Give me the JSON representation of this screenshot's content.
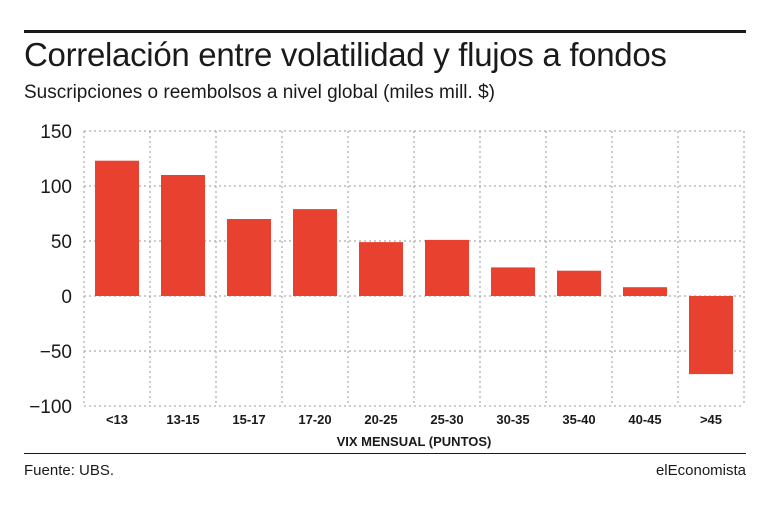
{
  "title": "Correlación entre volatilidad y flujos a fondos",
  "subtitle": "Suscripciones o reembolsos a nivel global (miles mill. $)",
  "source": "Fuente: UBS.",
  "brand": "elEconomista",
  "colors": {
    "bar": "#e8412f",
    "grid": "#9a9a9a",
    "text": "#1a1a1a"
  },
  "chart_data": {
    "type": "bar",
    "title": "Correlación entre volatilidad y flujos a fondos",
    "subtitle": "Suscripciones o reembolsos a nivel global (miles mill. $)",
    "xlabel": "VIX MENSUAL (PUNTOS)",
    "ylabel": "",
    "categories": [
      "<13",
      "13-15",
      "15-17",
      "17-20",
      "20-25",
      "25-30",
      "30-35",
      "35-40",
      "40-45",
      ">45"
    ],
    "values": [
      123,
      110,
      70,
      79,
      49,
      51,
      26,
      23,
      8,
      -71
    ],
    "ylim": [
      -100,
      150
    ],
    "yticks": [
      150,
      100,
      50,
      0,
      -50,
      -100
    ],
    "ytick_labels": [
      "150",
      "100",
      "50",
      "0",
      "−50",
      "−100"
    ],
    "grid": true,
    "legend": "none"
  }
}
